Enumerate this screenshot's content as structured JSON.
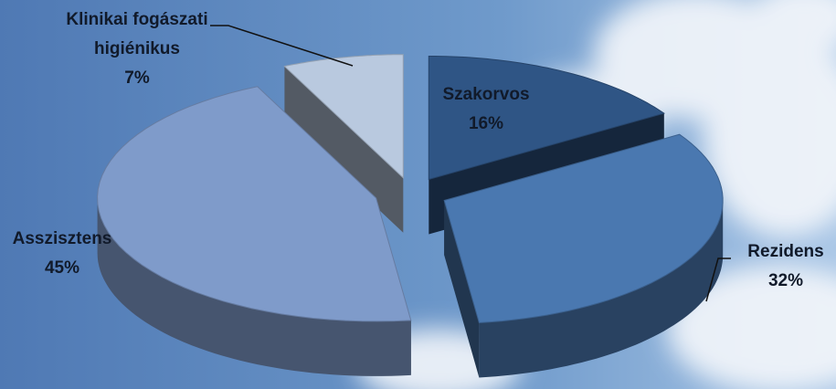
{
  "chart_data": {
    "type": "pie",
    "categories": [
      "Szakorvos",
      "Rezidens",
      "Asszisztens",
      "Klinikai fogászati higiénikus"
    ],
    "values": [
      16,
      32,
      45,
      7
    ],
    "value_labels": [
      "16%",
      "32%",
      "45%",
      "7%"
    ],
    "colors": [
      "#2f5585",
      "#4a78b0",
      "#7f9bca",
      "#b9c9df"
    ]
  }
}
